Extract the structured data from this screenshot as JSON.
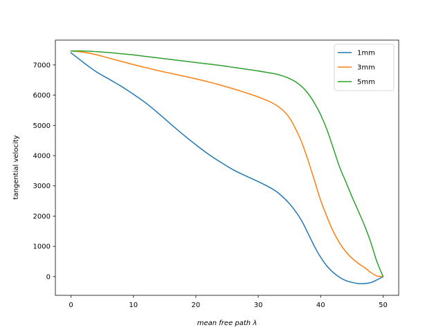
{
  "chart_data": {
    "type": "line",
    "title": "",
    "xlabel": "mean free path λ",
    "ylabel": "tangential velocity",
    "xlim": [
      -2.5,
      52.5
    ],
    "ylim": [
      -620,
      7820
    ],
    "xticks": [
      0,
      10,
      20,
      30,
      40,
      50
    ],
    "yticks": [
      0,
      1000,
      2000,
      3000,
      4000,
      5000,
      6000,
      7000
    ],
    "grid": false,
    "legend_position": "top-right",
    "series": [
      {
        "name": "1mm",
        "color": "#1f77b4",
        "x": [
          0,
          2,
          4,
          6,
          8,
          10,
          12,
          14,
          16,
          18,
          20,
          22,
          24,
          26,
          28,
          30,
          32,
          33,
          34,
          35,
          36,
          37,
          38,
          39,
          40,
          41,
          42,
          43,
          44,
          45,
          46,
          47,
          48,
          49,
          50
        ],
        "y": [
          7400,
          7080,
          6780,
          6540,
          6300,
          6030,
          5740,
          5400,
          5040,
          4690,
          4360,
          4050,
          3780,
          3530,
          3330,
          3140,
          2930,
          2800,
          2620,
          2410,
          2150,
          1830,
          1420,
          1000,
          640,
          350,
          140,
          -20,
          -130,
          -190,
          -230,
          -230,
          -200,
          -110,
          0
        ]
      },
      {
        "name": "3mm",
        "color": "#ff7f0e",
        "x": [
          0,
          2,
          4,
          6,
          8,
          10,
          12,
          14,
          16,
          18,
          20,
          22,
          24,
          26,
          28,
          30,
          32,
          33,
          34,
          35,
          36,
          37,
          38,
          39,
          40,
          41,
          42,
          43,
          44,
          45,
          46,
          47,
          48,
          49,
          50
        ],
        "y": [
          7460,
          7420,
          7340,
          7230,
          7120,
          7010,
          6910,
          6810,
          6720,
          6630,
          6540,
          6440,
          6330,
          6210,
          6080,
          5940,
          5770,
          5650,
          5490,
          5250,
          4880,
          4420,
          3830,
          3180,
          2520,
          1980,
          1500,
          1120,
          830,
          610,
          440,
          300,
          140,
          20,
          0
        ]
      },
      {
        "name": "5mm",
        "color": "#2ca02c",
        "x": [
          0,
          2,
          4,
          6,
          8,
          10,
          12,
          14,
          16,
          18,
          20,
          22,
          24,
          26,
          28,
          30,
          32,
          33,
          34,
          35,
          36,
          37,
          38,
          39,
          40,
          41,
          42,
          43,
          44,
          45,
          46,
          47,
          48,
          49,
          50
        ],
        "y": [
          7460,
          7460,
          7440,
          7410,
          7370,
          7330,
          7280,
          7230,
          7180,
          7130,
          7080,
          7030,
          6980,
          6920,
          6860,
          6800,
          6730,
          6690,
          6630,
          6550,
          6440,
          6280,
          6050,
          5740,
          5350,
          4860,
          4260,
          3640,
          3150,
          2650,
          2180,
          1700,
          1150,
          500,
          0
        ]
      }
    ]
  }
}
